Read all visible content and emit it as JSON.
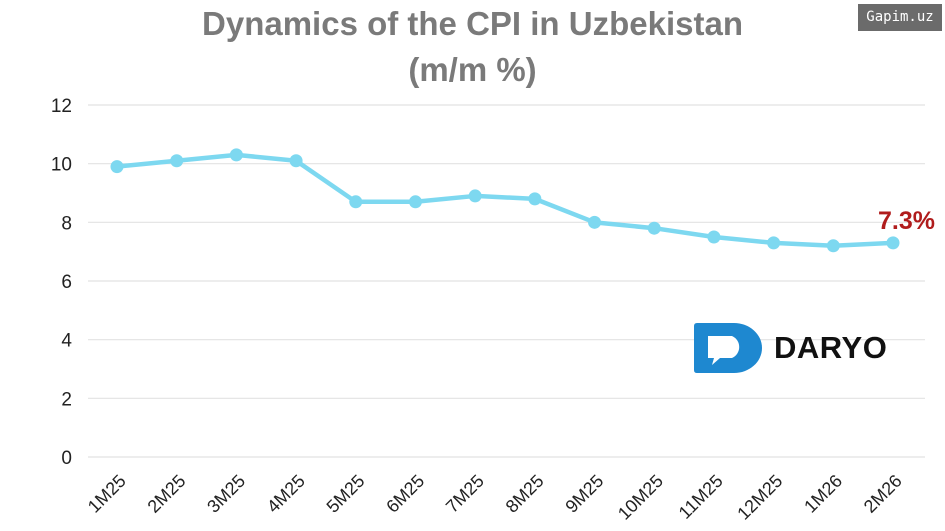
{
  "chart_data": {
    "type": "line",
    "title": "Dynamics of the CPI in Uzbekistan",
    "subtitle": "(m/m %)",
    "categories": [
      "1M25",
      "2M25",
      "3M25",
      "4M25",
      "5M25",
      "6M25",
      "7M25",
      "8M25",
      "9M25",
      "10M25",
      "11M25",
      "12M25",
      "1M26",
      "2M26"
    ],
    "values": [
      9.9,
      10.1,
      10.3,
      10.1,
      8.7,
      8.7,
      8.9,
      8.8,
      8.0,
      7.8,
      7.5,
      7.3,
      7.2,
      7.3
    ],
    "ylim": [
      0,
      12
    ],
    "yticks": [
      0,
      2,
      4,
      6,
      8,
      10,
      12
    ],
    "grid": true,
    "line_color": "#7dd8f0",
    "annotation": {
      "text": "7.3%",
      "color": "#b01c1c"
    }
  },
  "logo": {
    "text": "DARYO",
    "color": "#1e88d0"
  },
  "watermark": "Gapim.uz"
}
